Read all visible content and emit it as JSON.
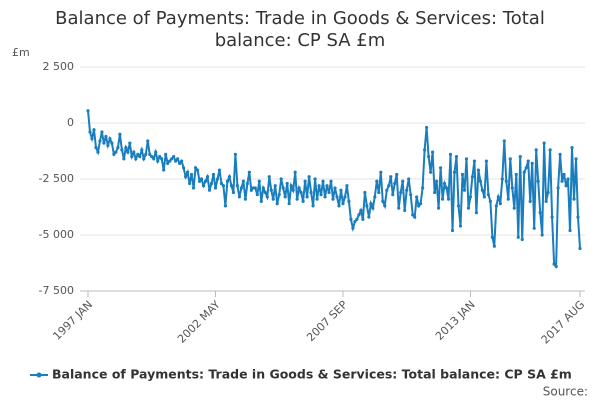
{
  "chart_data": {
    "type": "line",
    "title": "Balance of Payments: Trade in Goods & Services: Total balance: CP SA £m",
    "y_label": "£m",
    "source": "Source:",
    "categories": [
      "1997 JAN",
      null,
      null,
      null,
      null,
      null,
      null,
      null,
      null,
      null,
      null,
      null,
      null,
      null,
      null,
      null,
      null,
      null,
      null,
      null,
      null,
      null,
      null,
      null,
      null,
      null,
      null,
      null,
      null,
      null,
      null,
      null,
      null,
      null,
      null,
      null,
      null,
      null,
      null,
      null,
      null,
      null,
      null,
      null,
      null,
      null,
      null,
      null,
      null,
      null,
      null,
      null,
      null,
      null,
      null,
      null,
      null,
      null,
      null,
      null,
      null,
      null,
      null,
      null,
      "2002 MAY",
      null,
      null,
      null,
      null,
      null,
      null,
      null,
      null,
      null,
      null,
      null,
      null,
      null,
      null,
      null,
      null,
      null,
      null,
      null,
      null,
      null,
      null,
      null,
      null,
      null,
      null,
      null,
      null,
      null,
      null,
      null,
      null,
      null,
      null,
      null,
      null,
      null,
      null,
      null,
      null,
      null,
      null,
      null,
      null,
      null,
      null,
      null,
      null,
      null,
      null,
      null,
      null,
      null,
      null,
      null,
      null,
      null,
      null,
      null,
      null,
      null,
      null,
      null,
      "2007 SEP",
      null,
      null,
      null,
      null,
      null,
      null,
      null,
      null,
      null,
      null,
      null,
      null,
      null,
      null,
      null,
      null,
      null,
      null,
      null,
      null,
      null,
      null,
      null,
      null,
      null,
      null,
      null,
      null,
      null,
      null,
      null,
      null,
      null,
      null,
      null,
      null,
      null,
      null,
      null,
      null,
      null,
      null,
      null,
      null,
      null,
      null,
      null,
      null,
      null,
      null,
      null,
      null,
      null,
      null,
      null,
      null,
      null,
      null,
      null,
      null,
      null,
      null,
      null,
      "2013 JAN",
      null,
      null,
      null,
      null,
      null,
      null,
      null,
      null,
      null,
      null,
      null,
      null,
      null,
      null,
      null,
      null,
      null,
      null,
      null,
      null,
      null,
      null,
      null,
      null,
      null,
      null,
      null,
      null,
      null,
      null,
      null,
      null,
      null,
      null,
      null,
      null,
      null,
      null,
      null,
      null,
      null,
      null,
      null,
      null,
      null,
      null,
      null,
      null,
      null,
      null,
      null,
      null,
      null,
      null,
      "2017 AUG"
    ],
    "series": [
      {
        "name": "Balance of Payments: Trade in Goods & Services: Total balance: CP SA £m",
        "color": "#1a7dbd",
        "values": [
          550,
          -400,
          -700,
          -300,
          -1100,
          -1300,
          -800,
          -400,
          -900,
          -600,
          -1000,
          -700,
          -900,
          -1400,
          -1300,
          -1100,
          -500,
          -1200,
          -1600,
          -1100,
          -1300,
          -900,
          -1500,
          -1300,
          -1600,
          -1400,
          -1500,
          -1200,
          -1600,
          -1400,
          -800,
          -1400,
          -1500,
          -1600,
          -1300,
          -1700,
          -1500,
          -1600,
          -2100,
          -1400,
          -1800,
          -1700,
          -1600,
          -1500,
          -1700,
          -1600,
          -1800,
          -1700,
          -2000,
          -2400,
          -2200,
          -2700,
          -2300,
          -2900,
          -2000,
          -2100,
          -2600,
          -2500,
          -2800,
          -2600,
          -2400,
          -3000,
          -2700,
          -2300,
          -2900,
          -2500,
          -2100,
          -2700,
          -2800,
          -3700,
          -2600,
          -2400,
          -2800,
          -3100,
          -1400,
          -2800,
          -3300,
          -2900,
          -2600,
          -3400,
          -2700,
          -2200,
          -3000,
          -2900,
          -2900,
          -3200,
          -2600,
          -3500,
          -2900,
          -3100,
          -3300,
          -2400,
          -3000,
          -3400,
          -2800,
          -3600,
          -3200,
          -2500,
          -2900,
          -3300,
          -2700,
          -3600,
          -2800,
          -3000,
          -2200,
          -3400,
          -2900,
          -3100,
          -3500,
          -2600,
          -3300,
          -2400,
          -3100,
          -3700,
          -2500,
          -3400,
          -2800,
          -3200,
          -2600,
          -3300,
          -2800,
          -3100,
          -2600,
          -3400,
          -2900,
          -3300,
          -3700,
          -3000,
          -3600,
          -3300,
          -2800,
          -3500,
          -4300,
          -4700,
          -4400,
          -4300,
          -4100,
          -3900,
          -4300,
          -3100,
          -3700,
          -4200,
          -3600,
          -3800,
          -3300,
          -2600,
          -3100,
          -2200,
          -3500,
          -3700,
          -3000,
          -2800,
          -2400,
          -3200,
          -2700,
          -2300,
          -3800,
          -3100,
          -2600,
          -3900,
          -3000,
          -2500,
          -3200,
          -4100,
          -4200,
          -3300,
          -3700,
          -3600,
          -2900,
          -1200,
          -200,
          -1500,
          -2200,
          -1300,
          -3100,
          -2600,
          -3800,
          -2000,
          -3400,
          -2700,
          -2900,
          -3400,
          -1400,
          -4800,
          -2200,
          -1500,
          -3700,
          -4600,
          -2300,
          -3000,
          -1600,
          -3800,
          -3300,
          -2400,
          -1700,
          -4000,
          -2100,
          -2600,
          -3000,
          -3300,
          -1700,
          -3200,
          -3500,
          -5100,
          -5500,
          -3700,
          -3300,
          -3600,
          -2500,
          -800,
          -2600,
          -3400,
          -1600,
          -2900,
          -3800,
          -2300,
          -5100,
          -1500,
          -5200,
          -2200,
          -2000,
          -1700,
          -3500,
          -1800,
          -4700,
          -1200,
          -2600,
          -4000,
          -5000,
          -900,
          -3500,
          -3100,
          -1200,
          -4200,
          -6300,
          -6400,
          -2900,
          -1400,
          -2600,
          -2300,
          -2800,
          -2500,
          -4800,
          -1100,
          -3400,
          -1600,
          -4200,
          -5600
        ]
      }
    ],
    "ylim": [
      -7500,
      2500
    ],
    "yticks": [
      {
        "value": -7500,
        "label": "-7 500"
      },
      {
        "value": -5000,
        "label": "-5 000"
      },
      {
        "value": -2500,
        "label": "-2 500"
      },
      0,
      {
        "value": 2500,
        "label": "2 500"
      }
    ],
    "grid": true
  }
}
